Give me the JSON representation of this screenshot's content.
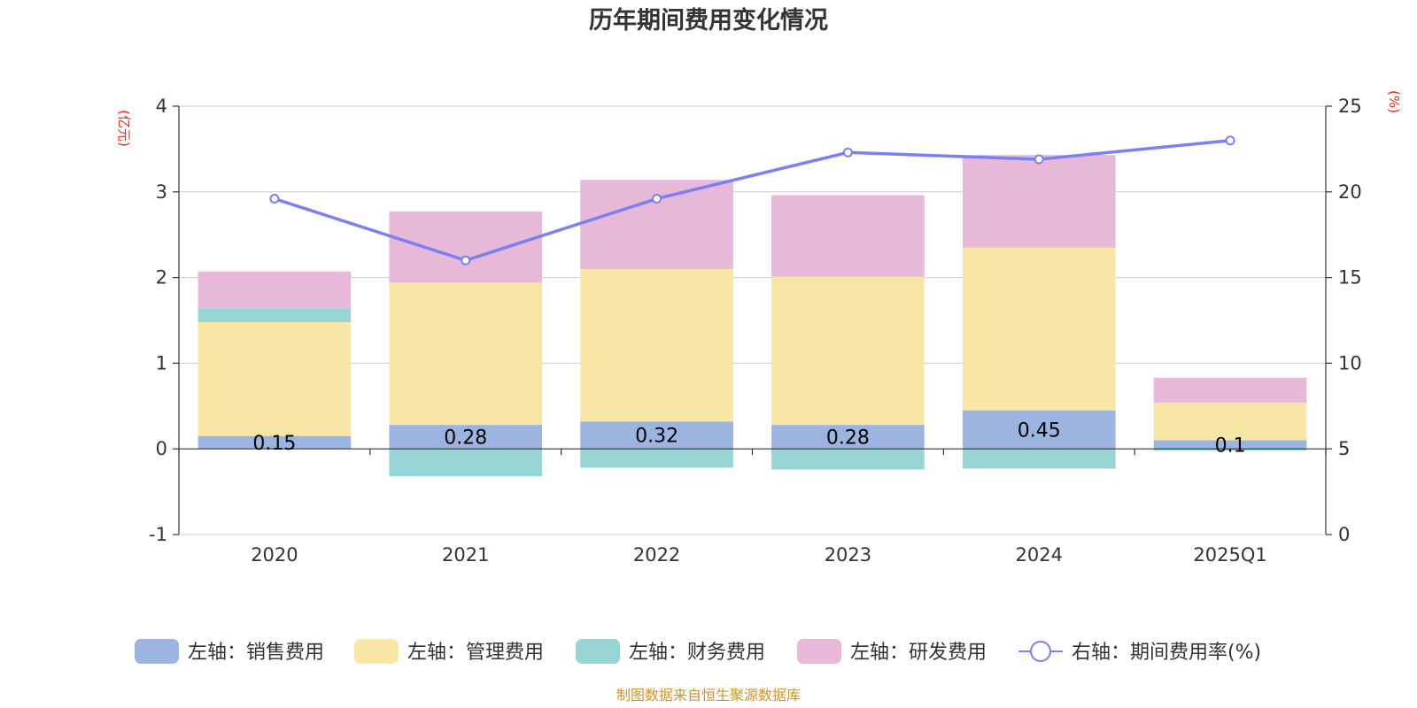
{
  "chart_data": {
    "type": "bar",
    "title": "历年期间费用变化情况",
    "categories": [
      "2020",
      "2021",
      "2022",
      "2023",
      "2024",
      "2025Q1"
    ],
    "series": [
      {
        "name": "左轴：销售费用",
        "axis": "left",
        "color": "#9bb5e0",
        "values": [
          0.15,
          0.28,
          0.32,
          0.28,
          0.45,
          0.1
        ],
        "labels": [
          "0.15",
          "0.28",
          "0.32",
          "0.28",
          "0.45",
          "0.1"
        ]
      },
      {
        "name": "左轴：管理费用",
        "axis": "left",
        "color": "#f8e6a7",
        "values": [
          1.33,
          1.66,
          1.78,
          1.73,
          1.9,
          0.44
        ]
      },
      {
        "name": "左轴：财务费用",
        "axis": "left",
        "color": "#97d4d4",
        "values": [
          0.16,
          -0.32,
          -0.22,
          -0.24,
          -0.23,
          -0.02
        ]
      },
      {
        "name": "左轴：研发费用",
        "axis": "left",
        "color": "#e8b8d8",
        "values": [
          0.43,
          0.83,
          1.04,
          0.95,
          1.08,
          0.29
        ]
      },
      {
        "name": "右轴：期间费用率(%)",
        "axis": "right",
        "type": "line",
        "color": "#7b7ff0",
        "values": [
          19.6,
          16.0,
          19.6,
          22.3,
          21.9,
          23.0
        ]
      }
    ],
    "y_left": {
      "unit": "(亿元)",
      "min": -1,
      "max": 4,
      "ticks": [
        "-1",
        "0",
        "1",
        "2",
        "3",
        "4"
      ]
    },
    "y_right": {
      "unit": "(%)",
      "min": 0,
      "max": 25,
      "ticks": [
        "0",
        "5",
        "10",
        "15",
        "20",
        "25"
      ]
    },
    "grid": true,
    "legend": "bottom"
  },
  "source_note": "制图数据来自恒生聚源数据库"
}
